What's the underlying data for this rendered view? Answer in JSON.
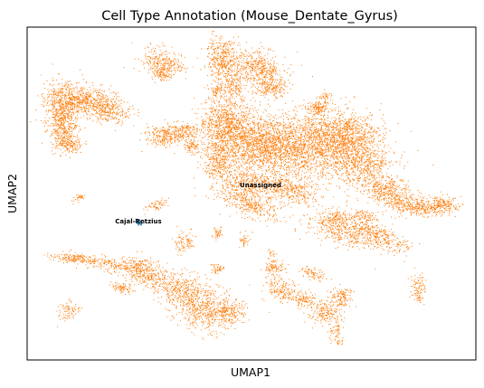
{
  "chart_data": {
    "type": "scatter",
    "title": "Cell Type Annotation (Mouse_Dentate_Gyrus)",
    "xlabel": "UMAP1",
    "ylabel": "UMAP2",
    "grid": false,
    "legend": "none",
    "ticks": "none",
    "series": [
      {
        "name": "Unassigned",
        "color": "#ff7f0e"
      },
      {
        "name": "Cajal-Retzius",
        "color": "#1f77b4"
      }
    ]
  }
}
